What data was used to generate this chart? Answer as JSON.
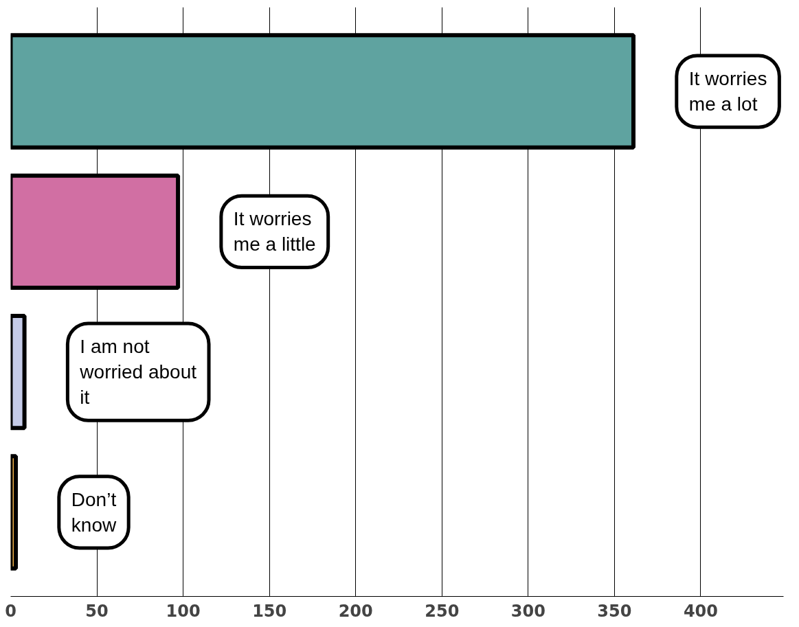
{
  "chart_data": {
    "type": "bar",
    "orientation": "horizontal",
    "categories": [
      "It worries me a lot",
      "It worries me a little",
      "I am not worried about it",
      "Don’t know"
    ],
    "values": [
      361,
      97,
      8,
      3
    ],
    "colors": [
      "#5fa3a0",
      "#d16fa3",
      "#c5cbe8",
      "#f0b24a"
    ],
    "xlim": [
      0,
      448
    ],
    "xticks": [
      0,
      50,
      100,
      150,
      200,
      250,
      300,
      350,
      400
    ],
    "grid": "x",
    "tick_labels": "x"
  }
}
